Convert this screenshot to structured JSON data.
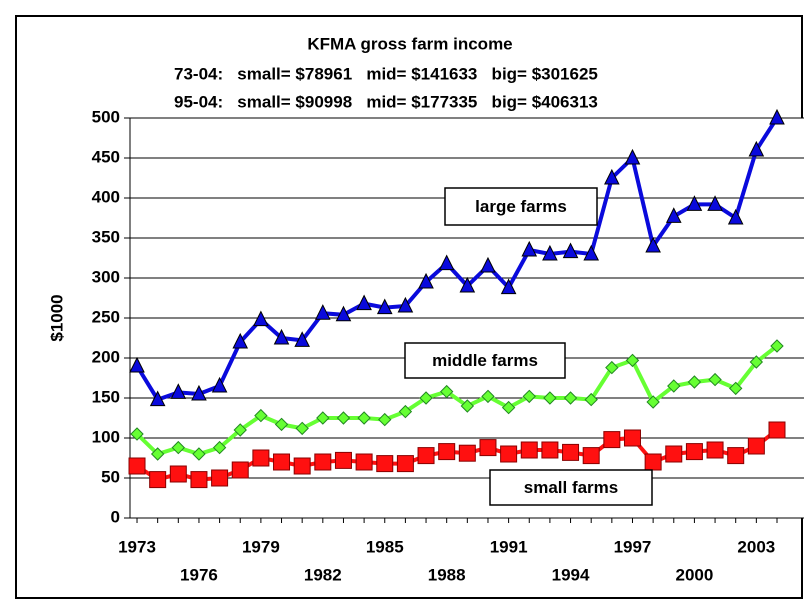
{
  "chart_data": {
    "type": "line",
    "title": "KFMA gross farm income",
    "subtitles": [
      "73-04:   small= $78961   mid= $141633   big= $301625",
      "95-04:   small= $90998   mid= $177335   big= $406313"
    ],
    "y_label": "$1000",
    "x": [
      1973,
      1974,
      1975,
      1976,
      1977,
      1978,
      1979,
      1980,
      1981,
      1982,
      1983,
      1984,
      1985,
      1986,
      1987,
      1988,
      1989,
      1990,
      1991,
      1992,
      1993,
      1994,
      1995,
      1996,
      1997,
      1998,
      1999,
      2000,
      2001,
      2002,
      2003,
      2004
    ],
    "series": [
      {
        "name": "large farms",
        "color": "#0a0adc",
        "marker": "triangle",
        "values": [
          190,
          148,
          157,
          155,
          165,
          220,
          248,
          225,
          222,
          256,
          254,
          268,
          263,
          265,
          295,
          318,
          290,
          315,
          288,
          335,
          330,
          333,
          330,
          425,
          450,
          340,
          377,
          392,
          392,
          375,
          460,
          500
        ]
      },
      {
        "name": "middle farms",
        "color": "#66ff33",
        "marker": "diamond",
        "values": [
          105,
          80,
          88,
          80,
          88,
          110,
          128,
          117,
          112,
          125,
          125,
          125,
          123,
          133,
          150,
          158,
          140,
          152,
          138,
          152,
          150,
          150,
          148,
          188,
          197,
          145,
          165,
          170,
          173,
          162,
          195,
          215
        ]
      },
      {
        "name": "small farms",
        "color": "#ff1010",
        "marker": "square",
        "values": [
          65,
          48,
          55,
          48,
          50,
          60,
          75,
          70,
          65,
          70,
          72,
          70,
          68,
          68,
          78,
          83,
          81,
          88,
          80,
          85,
          85,
          82,
          78,
          98,
          100,
          70,
          80,
          83,
          85,
          78,
          90,
          110
        ]
      }
    ],
    "xlim": [
      1972.66,
      2004.63
    ],
    "xticks": [
      1973,
      1976,
      1979,
      1982,
      1985,
      1988,
      1991,
      1994,
      1997,
      2000,
      2003
    ],
    "ylim": [
      0,
      500
    ],
    "yticks": [
      0,
      50,
      100,
      150,
      200,
      250,
      300,
      350,
      400,
      450,
      500
    ],
    "grid": true
  }
}
